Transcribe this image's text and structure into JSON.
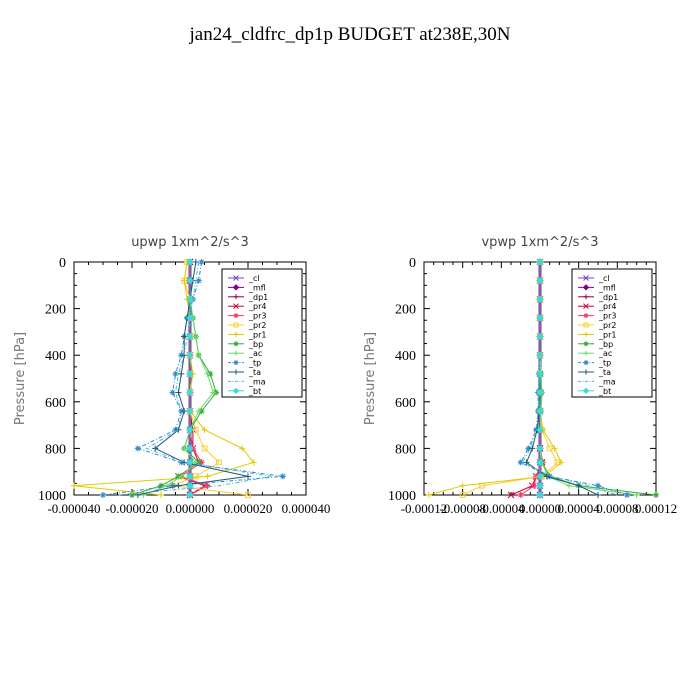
{
  "figure_title": "jan24_cldfrc_dp1p  BUDGET at238E,30N",
  "legend_entries": [
    {
      "label": "_cl",
      "color": "#7744cc",
      "marker": "cross"
    },
    {
      "label": "_mfl",
      "color": "#880088",
      "marker": "diamond"
    },
    {
      "label": "_dp1",
      "color": "#990055",
      "marker": "plus"
    },
    {
      "label": "_pr4",
      "color": "#cc0033",
      "marker": "cross"
    },
    {
      "label": "_pr3",
      "color": "#ff3366",
      "marker": "star"
    },
    {
      "label": "_pr2",
      "color": "#ffcc33",
      "marker": "square"
    },
    {
      "label": "_pr1",
      "color": "#ddcc00",
      "marker": "plus"
    },
    {
      "label": "_bp",
      "color": "#33aa33",
      "marker": "star"
    },
    {
      "label": "_ac",
      "color": "#66dd66",
      "marker": "plus"
    },
    {
      "label": "_tp",
      "color": "#3388cc",
      "marker": "star"
    },
    {
      "label": "_ta",
      "color": "#225577",
      "marker": "plus"
    },
    {
      "label": "_ma",
      "color": "#44bbdd",
      "marker": "none"
    },
    {
      "label": "_bt",
      "color": "#33dddd",
      "marker": "diamond"
    }
  ],
  "chart_data": [
    {
      "type": "line",
      "title": "upwp   1xm^2/s^3",
      "ylabel": "Pressure [hPa]",
      "xlabel": "",
      "xlim": [
        -4e-05,
        4e-05
      ],
      "ylim": [
        1000,
        0
      ],
      "y_reversed": true,
      "x_ticklabels": [
        "-0.000040",
        "-0.000020",
        "0.000000",
        "0.000020",
        "0.000040"
      ],
      "y_ticklabels": [
        "0",
        "200",
        "400",
        "600",
        "800",
        "1000"
      ],
      "legend_position": "top-right",
      "series": [
        {
          "name": "_cl",
          "x": [
            0,
            0,
            0,
            0,
            0,
            0,
            0,
            0,
            0,
            0,
            0,
            0,
            0,
            0,
            0
          ],
          "y": [
            0,
            80,
            160,
            240,
            320,
            400,
            480,
            560,
            640,
            720,
            800,
            860,
            920,
            960,
            1000
          ]
        },
        {
          "name": "_mfl",
          "x": [
            0,
            0,
            0,
            0,
            0,
            0,
            0,
            0,
            0,
            0,
            0,
            0,
            0,
            0,
            0
          ],
          "y": [
            0,
            80,
            160,
            240,
            320,
            400,
            480,
            560,
            640,
            720,
            800,
            860,
            920,
            960,
            1000
          ]
        },
        {
          "name": "_dp1",
          "x": [
            0,
            0,
            0,
            0,
            0,
            0,
            0,
            0,
            0,
            0,
            0,
            0,
            0,
            0,
            0
          ],
          "y": [
            0,
            80,
            160,
            240,
            320,
            400,
            480,
            560,
            640,
            720,
            800,
            860,
            920,
            960,
            1000
          ]
        },
        {
          "name": "_pr4",
          "x": [
            0,
            0,
            0,
            0,
            0,
            0,
            0,
            0,
            0,
            1e-06,
            1e-06,
            3e-06,
            -4e-06,
            5e-06,
            0
          ],
          "y": [
            0,
            80,
            160,
            240,
            320,
            400,
            480,
            560,
            640,
            720,
            800,
            860,
            920,
            960,
            1000
          ]
        },
        {
          "name": "_pr3",
          "x": [
            0,
            0,
            0,
            0,
            0,
            0,
            0,
            0,
            0,
            0,
            1e-06,
            4e-06,
            -3e-06,
            6e-06,
            0
          ],
          "y": [
            0,
            80,
            160,
            240,
            320,
            400,
            480,
            560,
            640,
            720,
            800,
            860,
            920,
            960,
            1000
          ]
        },
        {
          "name": "_pr2",
          "x": [
            -1e-06,
            -2e-06,
            0,
            0,
            0,
            0,
            0,
            0,
            0,
            2e-06,
            5e-06,
            1e-05,
            2e-06,
            -6e-06,
            2e-05
          ],
          "y": [
            0,
            80,
            160,
            240,
            320,
            400,
            480,
            560,
            640,
            720,
            800,
            860,
            920,
            960,
            1000
          ]
        },
        {
          "name": "_pr1",
          "x": [
            -1e-06,
            -2e-06,
            -1e-06,
            0,
            0,
            0,
            1e-06,
            0,
            0,
            5e-06,
            1.8e-05,
            2.2e-05,
            6e-06,
            -4e-05,
            -1e-05
          ],
          "y": [
            0,
            80,
            160,
            240,
            320,
            400,
            480,
            560,
            640,
            720,
            800,
            860,
            920,
            960,
            1000
          ]
        },
        {
          "name": "_bp",
          "x": [
            0,
            0,
            0,
            1e-06,
            2e-06,
            3e-06,
            7e-06,
            9e-06,
            4e-06,
            0,
            -2e-06,
            3e-06,
            -4e-06,
            -1e-05,
            -2e-05
          ],
          "y": [
            0,
            80,
            160,
            240,
            320,
            400,
            480,
            560,
            640,
            720,
            800,
            860,
            920,
            960,
            1000
          ]
        },
        {
          "name": "_ac",
          "x": [
            0,
            0,
            0,
            1e-06,
            2e-06,
            3e-06,
            6e-06,
            8e-06,
            3e-06,
            0,
            -2e-06,
            2e-06,
            -3e-06,
            -8e-06,
            -1.6e-05
          ],
          "y": [
            0,
            80,
            160,
            240,
            320,
            400,
            480,
            560,
            640,
            720,
            800,
            860,
            920,
            960,
            1000
          ]
        },
        {
          "name": "_tp",
          "x": [
            4e-06,
            3e-06,
            1e-06,
            -1e-06,
            -2e-06,
            -3e-06,
            -5e-06,
            -6e-06,
            -3e-06,
            -5e-06,
            -1.8e-05,
            -3e-06,
            3.2e-05,
            -6e-06,
            -3e-05
          ],
          "y": [
            0,
            80,
            160,
            240,
            320,
            400,
            480,
            560,
            640,
            720,
            800,
            860,
            920,
            960,
            1000
          ]
        },
        {
          "name": "_ta",
          "x": [
            2e-06,
            1e-06,
            0,
            -1e-06,
            -2e-06,
            -2e-06,
            -3e-06,
            -4e-06,
            -2e-06,
            -4e-06,
            -1.2e-05,
            -2e-06,
            2e-05,
            -4e-06,
            -1.8e-05
          ],
          "y": [
            0,
            80,
            160,
            240,
            320,
            400,
            480,
            560,
            640,
            720,
            800,
            860,
            920,
            960,
            1000
          ]
        },
        {
          "name": "_ma",
          "x": [
            3e-06,
            2e-06,
            1e-06,
            0,
            -1e-06,
            -2e-06,
            -4e-06,
            -5e-06,
            -3e-06,
            -4e-06,
            -1.5e-05,
            -2e-06,
            2.8e-05,
            1e-05,
            -2.5e-05
          ],
          "y": [
            0,
            80,
            160,
            240,
            320,
            400,
            480,
            560,
            640,
            720,
            800,
            860,
            920,
            960,
            1000
          ]
        },
        {
          "name": "_bt",
          "x": [
            0,
            0,
            0,
            0,
            0,
            0,
            0,
            0,
            0,
            0,
            0,
            0,
            0,
            0,
            0
          ],
          "y": [
            0,
            80,
            160,
            240,
            320,
            400,
            480,
            560,
            640,
            720,
            800,
            860,
            920,
            960,
            1000
          ]
        }
      ]
    },
    {
      "type": "line",
      "title": "vpwp   1xm^2/s^3",
      "ylabel": "Pressure [hPa]",
      "xlabel": "",
      "xlim": [
        -0.00012,
        0.00012
      ],
      "ylim": [
        1000,
        0
      ],
      "y_reversed": true,
      "x_ticklabels": [
        "-0.00012",
        "-0.00008",
        "-0.00004",
        "0.00000",
        "0.00004",
        "0.00008",
        "0.00012"
      ],
      "y_ticklabels": [
        "0",
        "200",
        "400",
        "600",
        "800",
        "1000"
      ],
      "legend_position": "top-right",
      "series": [
        {
          "name": "_cl",
          "x": [
            0,
            0,
            0,
            0,
            0,
            0,
            0,
            0,
            0,
            0,
            0,
            0,
            0,
            0,
            0
          ],
          "y": [
            0,
            80,
            160,
            240,
            320,
            400,
            480,
            560,
            640,
            720,
            800,
            860,
            920,
            960,
            1000
          ]
        },
        {
          "name": "_mfl",
          "x": [
            0,
            0,
            0,
            0,
            0,
            0,
            0,
            0,
            0,
            0,
            0,
            0,
            0,
            0,
            0
          ],
          "y": [
            0,
            80,
            160,
            240,
            320,
            400,
            480,
            560,
            640,
            720,
            800,
            860,
            920,
            960,
            1000
          ]
        },
        {
          "name": "_dp1",
          "x": [
            0,
            0,
            0,
            0,
            0,
            0,
            0,
            0,
            0,
            0,
            0,
            0,
            0,
            0,
            0
          ],
          "y": [
            0,
            80,
            160,
            240,
            320,
            400,
            480,
            560,
            640,
            720,
            800,
            860,
            920,
            960,
            1000
          ]
        },
        {
          "name": "_pr4",
          "x": [
            0,
            0,
            0,
            0,
            0,
            0,
            0,
            0,
            0,
            0,
            0,
            2e-06,
            -4e-06,
            -8e-06,
            -3e-05
          ],
          "y": [
            0,
            80,
            160,
            240,
            320,
            400,
            480,
            560,
            640,
            720,
            800,
            860,
            920,
            960,
            1000
          ]
        },
        {
          "name": "_pr3",
          "x": [
            0,
            0,
            0,
            0,
            0,
            0,
            0,
            0,
            0,
            0,
            0,
            3e-06,
            -4e-06,
            -6e-06,
            -2e-05
          ],
          "y": [
            0,
            80,
            160,
            240,
            320,
            400,
            480,
            560,
            640,
            720,
            800,
            860,
            920,
            960,
            1000
          ]
        },
        {
          "name": "_pr2",
          "x": [
            0,
            0,
            0,
            0,
            0,
            0,
            0,
            0,
            0,
            2e-06,
            1e-05,
            1.8e-05,
            2e-06,
            -6e-05,
            -8e-05
          ],
          "y": [
            0,
            80,
            160,
            240,
            320,
            400,
            480,
            560,
            640,
            720,
            800,
            860,
            920,
            960,
            1000
          ]
        },
        {
          "name": "_pr1",
          "x": [
            0,
            0,
            0,
            0,
            0,
            0,
            0,
            0,
            0,
            3e-06,
            1.5e-05,
            2.2e-05,
            4e-06,
            -8e-05,
            -0.000115
          ],
          "y": [
            0,
            80,
            160,
            240,
            320,
            400,
            480,
            560,
            640,
            720,
            800,
            860,
            920,
            960,
            1000
          ]
        },
        {
          "name": "_bp",
          "x": [
            0,
            0,
            0,
            0,
            0,
            0,
            1e-06,
            2e-06,
            1e-06,
            0,
            0,
            2e-06,
            1e-05,
            4e-05,
            0.00012
          ],
          "y": [
            0,
            80,
            160,
            240,
            320,
            400,
            480,
            560,
            640,
            720,
            800,
            860,
            920,
            960,
            1000
          ]
        },
        {
          "name": "_ac",
          "x": [
            0,
            0,
            0,
            0,
            0,
            0,
            1e-06,
            2e-06,
            1e-06,
            0,
            0,
            2e-06,
            8e-06,
            3e-05,
            0.0001
          ],
          "y": [
            0,
            80,
            160,
            240,
            320,
            400,
            480,
            560,
            640,
            720,
            800,
            860,
            920,
            960,
            1000
          ]
        },
        {
          "name": "_tp",
          "x": [
            0,
            0,
            0,
            0,
            0,
            0,
            -1e-06,
            -2e-06,
            -2e-06,
            -4e-06,
            -1.2e-05,
            -2e-05,
            1e-05,
            6e-05,
            9e-05
          ],
          "y": [
            0,
            80,
            160,
            240,
            320,
            400,
            480,
            560,
            640,
            720,
            800,
            860,
            920,
            960,
            1000
          ]
        },
        {
          "name": "_ta",
          "x": [
            0,
            0,
            0,
            0,
            0,
            0,
            -1e-06,
            -1e-06,
            -1e-06,
            -3e-06,
            -8e-06,
            -1.4e-05,
            7e-06,
            4e-05,
            6e-05
          ],
          "y": [
            0,
            80,
            160,
            240,
            320,
            400,
            480,
            560,
            640,
            720,
            800,
            860,
            920,
            960,
            1000
          ]
        },
        {
          "name": "_ma",
          "x": [
            0,
            0,
            0,
            0,
            0,
            0,
            -1e-06,
            -2e-06,
            -2e-06,
            -4e-06,
            -1e-05,
            -1.8e-05,
            1.2e-05,
            5e-05,
            8e-05
          ],
          "y": [
            0,
            80,
            160,
            240,
            320,
            400,
            480,
            560,
            640,
            720,
            800,
            860,
            920,
            960,
            1000
          ]
        },
        {
          "name": "_bt",
          "x": [
            0,
            0,
            0,
            0,
            0,
            0,
            0,
            0,
            0,
            0,
            0,
            0,
            0,
            0,
            0
          ],
          "y": [
            0,
            80,
            160,
            240,
            320,
            400,
            480,
            560,
            640,
            720,
            800,
            860,
            920,
            960,
            1000
          ]
        }
      ]
    }
  ]
}
